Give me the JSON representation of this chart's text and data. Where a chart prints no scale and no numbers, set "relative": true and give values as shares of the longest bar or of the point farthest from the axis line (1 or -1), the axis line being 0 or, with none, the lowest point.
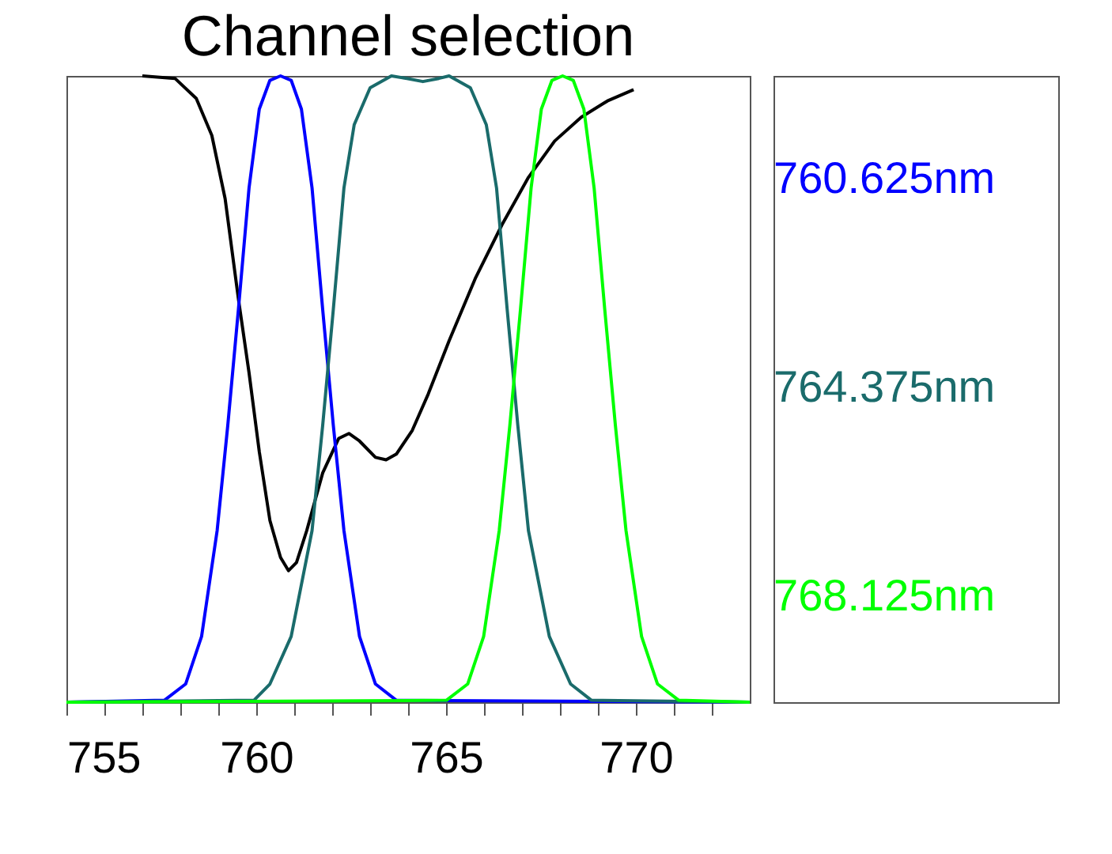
{
  "chart_data": {
    "type": "line",
    "title": "Channel selection",
    "relative": true,
    "legend": "right",
    "grid": false,
    "marker": "none",
    "line_style": "solid",
    "xlim": [
      755,
      773
    ],
    "xticks": [
      755,
      {
        "value": 756,
        "label": null
      },
      {
        "value": 757,
        "label": null
      },
      {
        "value": 758,
        "label": null
      },
      {
        "value": 759,
        "label": null
      },
      760,
      {
        "value": 761,
        "label": null
      },
      {
        "value": 762,
        "label": null
      },
      {
        "value": 763,
        "label": null
      },
      {
        "value": 764,
        "label": null
      },
      765,
      {
        "value": 766,
        "label": null
      },
      {
        "value": 767,
        "label": null
      },
      {
        "value": 768,
        "label": null
      },
      {
        "value": 769,
        "label": null
      },
      770,
      {
        "value": 771,
        "label": null
      },
      {
        "value": 772,
        "label": null
      }
    ],
    "series": [
      {
        "color": "#000000",
        "x": [
          757.0,
          757.86,
          758.42,
          758.83,
          759.18,
          759.53,
          759.81,
          760.08,
          760.36,
          760.64,
          760.85,
          761.06,
          761.33,
          761.75,
          762.17,
          762.44,
          762.72,
          763.14,
          763.42,
          763.69,
          764.11,
          764.53,
          765.08,
          765.78,
          766.47,
          767.17,
          767.86,
          768.56,
          769.25,
          769.94
        ],
        "values": [
          1.0,
          0.996,
          0.964,
          0.905,
          0.804,
          0.644,
          0.526,
          0.4,
          0.29,
          0.231,
          0.21,
          0.223,
          0.274,
          0.366,
          0.421,
          0.429,
          0.417,
          0.391,
          0.387,
          0.396,
          0.434,
          0.492,
          0.577,
          0.678,
          0.762,
          0.838,
          0.896,
          0.934,
          0.96,
          0.978
        ]
      },
      {
        "name": "760.625nm",
        "color": "#0000ff",
        "x": [
          755,
          757.58,
          758.14,
          758.56,
          758.97,
          759.25,
          759.53,
          759.81,
          760.08,
          760.36,
          760.64,
          760.92,
          761.19,
          761.47,
          761.75,
          762.03,
          762.31,
          762.72,
          763.14,
          763.69,
          773
        ],
        "values": [
          0,
          0.003,
          0.029,
          0.105,
          0.274,
          0.442,
          0.627,
          0.821,
          0.947,
          0.993,
          1.0,
          0.993,
          0.947,
          0.821,
          0.627,
          0.442,
          0.274,
          0.105,
          0.029,
          0.003,
          0
        ]
      },
      {
        "name": "764.375nm",
        "color": "#1a6b6b",
        "x": [
          755,
          759.94,
          760.36,
          760.92,
          761.47,
          761.75,
          762.03,
          762.31,
          762.58,
          763.0,
          763.56,
          763.97,
          764.39,
          764.81,
          765.08,
          765.64,
          766.06,
          766.33,
          766.61,
          766.89,
          767.17,
          767.72,
          768.28,
          768.83,
          773
        ],
        "values": [
          0,
          0.003,
          0.029,
          0.105,
          0.274,
          0.442,
          0.627,
          0.821,
          0.922,
          0.981,
          1.0,
          0.996,
          0.991,
          0.996,
          1.0,
          0.981,
          0.922,
          0.821,
          0.627,
          0.442,
          0.274,
          0.105,
          0.029,
          0.003,
          0
        ]
      },
      {
        "name": "768.125nm",
        "color": "#00ff00",
        "x": [
          755,
          765.01,
          765.57,
          765.99,
          766.4,
          766.68,
          766.96,
          767.24,
          767.51,
          767.79,
          768.07,
          768.35,
          768.63,
          768.9,
          769.18,
          769.46,
          769.74,
          770.15,
          770.57,
          771.13,
          773
        ],
        "values": [
          0,
          0.003,
          0.029,
          0.105,
          0.274,
          0.442,
          0.627,
          0.821,
          0.947,
          0.993,
          1.0,
          0.993,
          0.947,
          0.821,
          0.627,
          0.442,
          0.274,
          0.105,
          0.029,
          0.003,
          0
        ]
      }
    ]
  }
}
